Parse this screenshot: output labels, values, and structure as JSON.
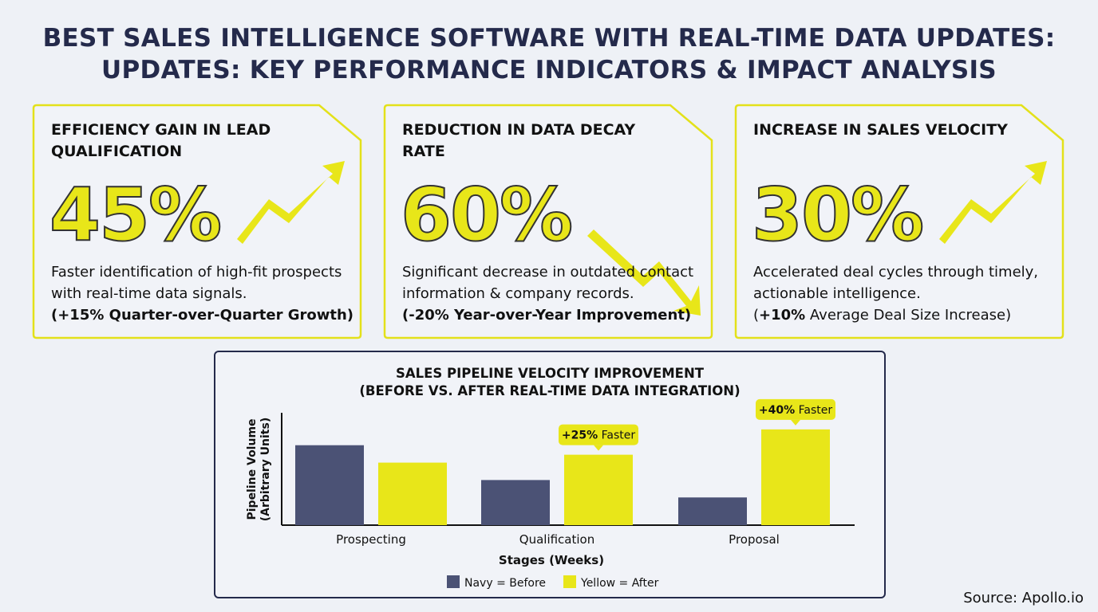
{
  "title": {
    "line1": "BEST SALES INTELLIGENCE SOFTWARE WITH REAL-TIME DATA UPDATES:",
    "line2": "UPDATES: KEY PERFORMANCE INDICATORS & IMPACT ANALYSIS"
  },
  "cards": [
    {
      "title": "EFFICIENCY GAIN IN LEAD QUALIFICATION",
      "value": "45%",
      "trend": "up",
      "icon": "trend-up-arrow-icon",
      "desc": "Faster identification of high-fit prospects with real-time data signals.",
      "note": "(+15% Quarter-over-Quarter Growth)"
    },
    {
      "title": "REDUCTION IN DATA DECAY RATE",
      "value": "60%",
      "trend": "down",
      "icon": "trend-down-arrow-icon",
      "desc": "Significant decrease in outdated contact information & company records.",
      "note": "(-20% Year-over-Year Improvement)"
    },
    {
      "title": "INCREASE IN SALES VELOCITY",
      "value": "30%",
      "trend": "up",
      "icon": "trend-up-arrow-icon",
      "desc": "Accelerated deal cycles through timely, actionable intelligence.",
      "note_bold": "+10%",
      "note_rest": " Average Deal Size Increase)",
      "note_open": "("
    }
  ],
  "colors": {
    "accent": "#e8e619",
    "navy": "#4b5275",
    "dark": "#242a4b"
  },
  "chart_data": {
    "type": "bar",
    "title": "SALES PIPELINE VELOCITY IMPROVEMENT",
    "subtitle": "(BEFORE VS. AFTER REAL-TIME DATA INTEGRATION)",
    "xlabel": "Stages (Weeks)",
    "ylabel": "Pipeline Volume (Arbitrary Units)",
    "ylabel_line1": "Pipeline Volume",
    "ylabel_line2": "(Arbitrary Units)",
    "categories": [
      "Prospecting",
      "Qualification",
      "Proposal"
    ],
    "series": [
      {
        "name": "Navy = Before",
        "color": "#4b5275",
        "values": [
          101,
          57,
          35
        ]
      },
      {
        "name": "Yellow = After",
        "color": "#e8e619",
        "values": [
          79,
          89,
          121
        ]
      }
    ],
    "annotations": [
      {
        "category": "Qualification",
        "bold": "+25%",
        "text": " Faster"
      },
      {
        "category": "Proposal",
        "bold": "+40%",
        "text": " Faster"
      }
    ],
    "ylim": [
      0,
      142
    ],
    "grid": false,
    "legend": "bottom"
  },
  "source": "Source: Apollo.io"
}
